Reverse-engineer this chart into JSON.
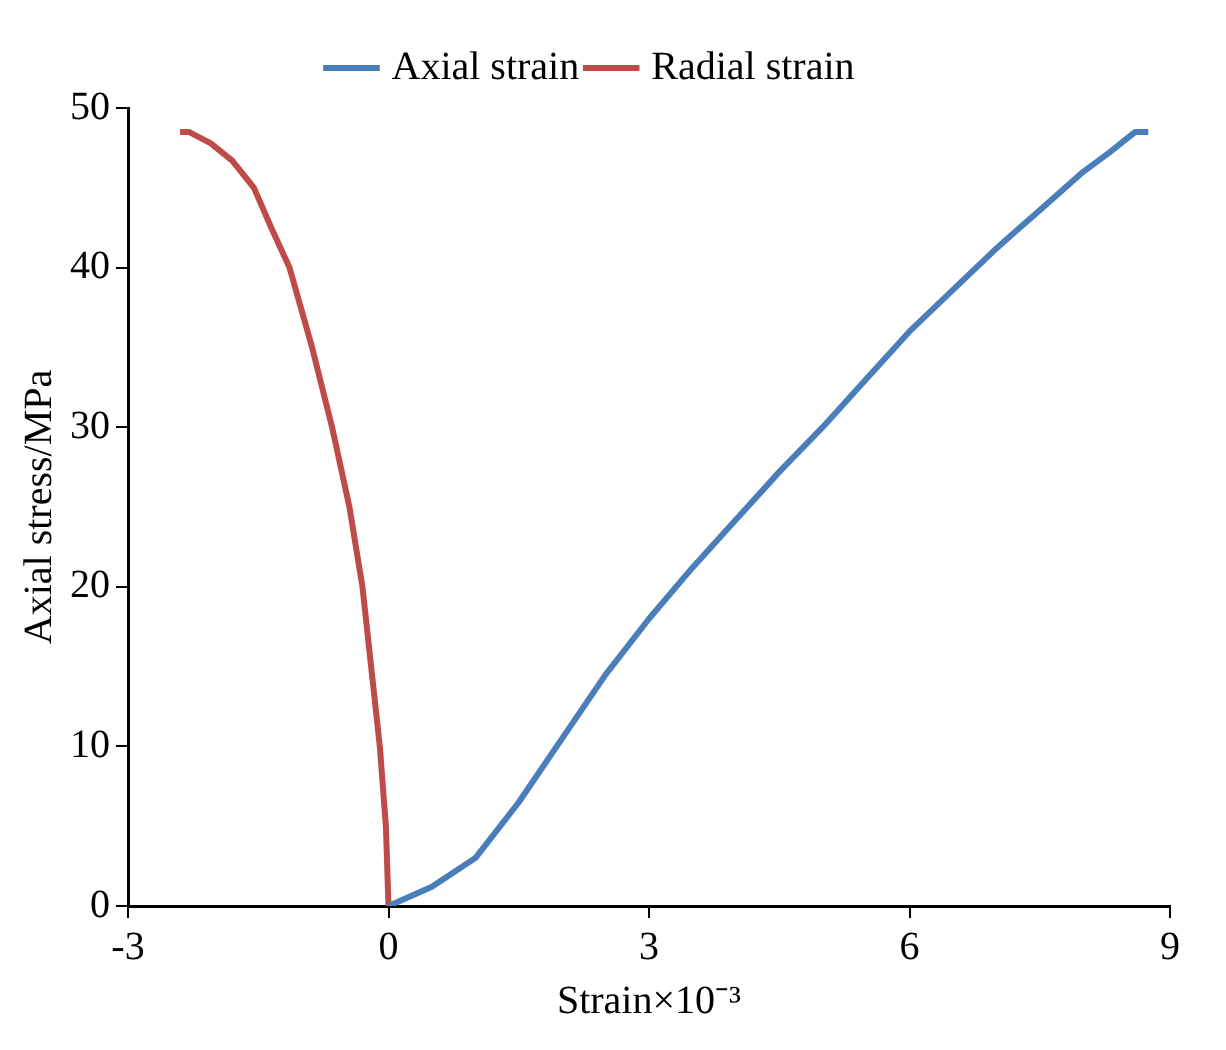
{
  "chart_data": {
    "type": "line",
    "xlabel": "Strain×10⁻³",
    "ylabel": "Axial stress/MPa",
    "xlim": [
      -3,
      9
    ],
    "xticks": [
      -3,
      0,
      3,
      6,
      9
    ],
    "ylim": [
      0,
      50
    ],
    "yticks": [
      0,
      10,
      20,
      30,
      40,
      50
    ],
    "grid": false,
    "legend": "top",
    "marker": "none",
    "series": [
      {
        "name": "Axial strain",
        "color": "#4a7ebb",
        "x": [
          0,
          0.5,
          1,
          1.5,
          2,
          2.5,
          3,
          3.5,
          4,
          4.5,
          5,
          5.5,
          6,
          6.5,
          7,
          7.5,
          8,
          8.3,
          8.6,
          8.75
        ],
        "values": [
          0,
          1.2,
          3,
          6.5,
          10.5,
          14.5,
          18,
          21.2,
          24.2,
          27.2,
          30,
          33,
          36,
          38.6,
          41.2,
          43.6,
          46,
          47.2,
          48.5,
          48.5
        ]
      },
      {
        "name": "Radial strain",
        "color": "#be4b48",
        "x": [
          0,
          -0.03,
          -0.1,
          -0.2,
          -0.3,
          -0.45,
          -0.65,
          -0.88,
          -1.14,
          -1.35,
          -1.55,
          -1.8,
          -2.05,
          -2.3,
          -2.4
        ],
        "values": [
          0,
          5,
          10,
          15,
          20,
          25,
          30,
          35,
          40,
          42.5,
          45,
          46.7,
          47.8,
          48.5,
          48.5
        ]
      }
    ]
  }
}
